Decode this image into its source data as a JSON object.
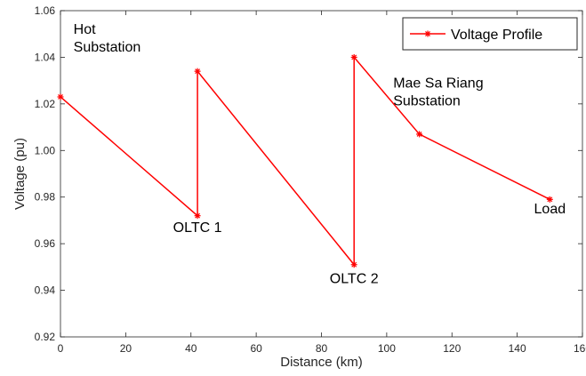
{
  "chart_data": {
    "type": "line",
    "xlabel": "Distance (km)",
    "ylabel": "Voltage (pu)",
    "xlim": [
      0,
      160
    ],
    "ylim": [
      0.92,
      1.06
    ],
    "xticks": [
      0,
      20,
      40,
      60,
      80,
      100,
      120,
      140,
      160
    ],
    "yticks": [
      0.92,
      0.94,
      0.96,
      0.98,
      1.0,
      1.02,
      1.04,
      1.06
    ],
    "xtick_labels": [
      "0",
      "20",
      "40",
      "60",
      "80",
      "100",
      "120",
      "140",
      "160"
    ],
    "ytick_labels": [
      "0.92",
      "0.94",
      "0.96",
      "0.98",
      "1.00",
      "1.02",
      "1.04",
      "1.06"
    ],
    "grid": false,
    "legend_position": "top-right",
    "series": [
      {
        "name": "Voltage Profile",
        "color": "#ff0000",
        "marker": "asterisk",
        "x": [
          0,
          42,
          42,
          90,
          90,
          110,
          150
        ],
        "y": [
          1.023,
          0.972,
          1.034,
          0.951,
          1.04,
          1.007,
          0.979
        ]
      }
    ],
    "annotations": [
      {
        "lines": [
          "Hot",
          "Substation"
        ],
        "x": 4,
        "y": 1.05,
        "anchor": "start"
      },
      {
        "lines": [
          "OLTC 1"
        ],
        "x": 42,
        "y": 0.965,
        "anchor": "middle"
      },
      {
        "lines": [
          "OLTC 2"
        ],
        "x": 90,
        "y": 0.943,
        "anchor": "middle"
      },
      {
        "lines": [
          "Mae Sa Riang",
          "Substation"
        ],
        "x": 102,
        "y": 1.027,
        "anchor": "start"
      },
      {
        "lines": [
          "Load"
        ],
        "x": 150,
        "y": 0.973,
        "anchor": "middle"
      }
    ]
  }
}
